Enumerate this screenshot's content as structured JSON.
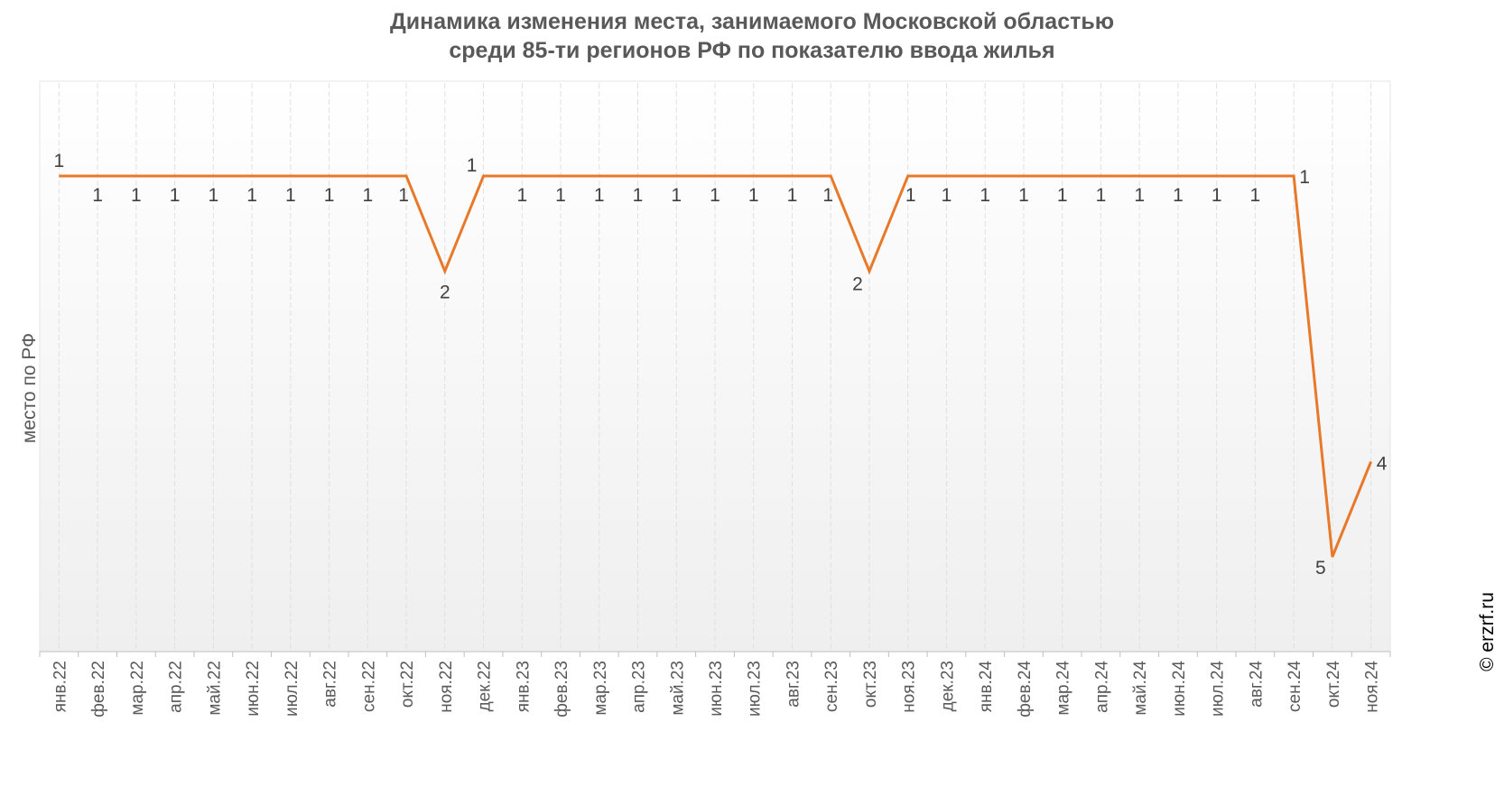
{
  "title_lines": [
    "Динамика изменения места, занимаемого Московской областью",
    "среди 85-ти регионов РФ по показателю ввода жилья"
  ],
  "copyright": "© erzrf.ru",
  "colors": {
    "line": "#E8792A",
    "text": "#595959",
    "grid": "#E0E0E0"
  },
  "chart_data": {
    "type": "line",
    "title": "Динамика изменения места, занимаемого Московской областью среди 85-ти регионов РФ по показателю ввода жилья",
    "xlabel": "",
    "ylabel": "место по РФ",
    "y_inverted": true,
    "ylim": [
      0,
      6
    ],
    "grid": "vertical",
    "categories": [
      "янв.22",
      "фев.22",
      "мар.22",
      "апр.22",
      "май.22",
      "июн.22",
      "июл.22",
      "авг.22",
      "сен.22",
      "окт.22",
      "ноя.22",
      "дек.22",
      "янв.23",
      "фев.23",
      "мар.23",
      "апр.23",
      "май.23",
      "июн.23",
      "июл.23",
      "авг.23",
      "сен.23",
      "окт.23",
      "ноя.23",
      "дек.23",
      "янв.24",
      "фев.24",
      "мар.24",
      "апр.24",
      "май.24",
      "июн.24",
      "июл.24",
      "авг.24",
      "сен.24",
      "окт.24",
      "ноя.24"
    ],
    "series": [
      {
        "values": [
          1,
          1,
          1,
          1,
          1,
          1,
          1,
          1,
          1,
          1,
          2,
          1,
          1,
          1,
          1,
          1,
          1,
          1,
          1,
          1,
          1,
          2,
          1,
          1,
          1,
          1,
          1,
          1,
          1,
          1,
          1,
          1,
          1,
          5,
          4
        ]
      }
    ]
  }
}
